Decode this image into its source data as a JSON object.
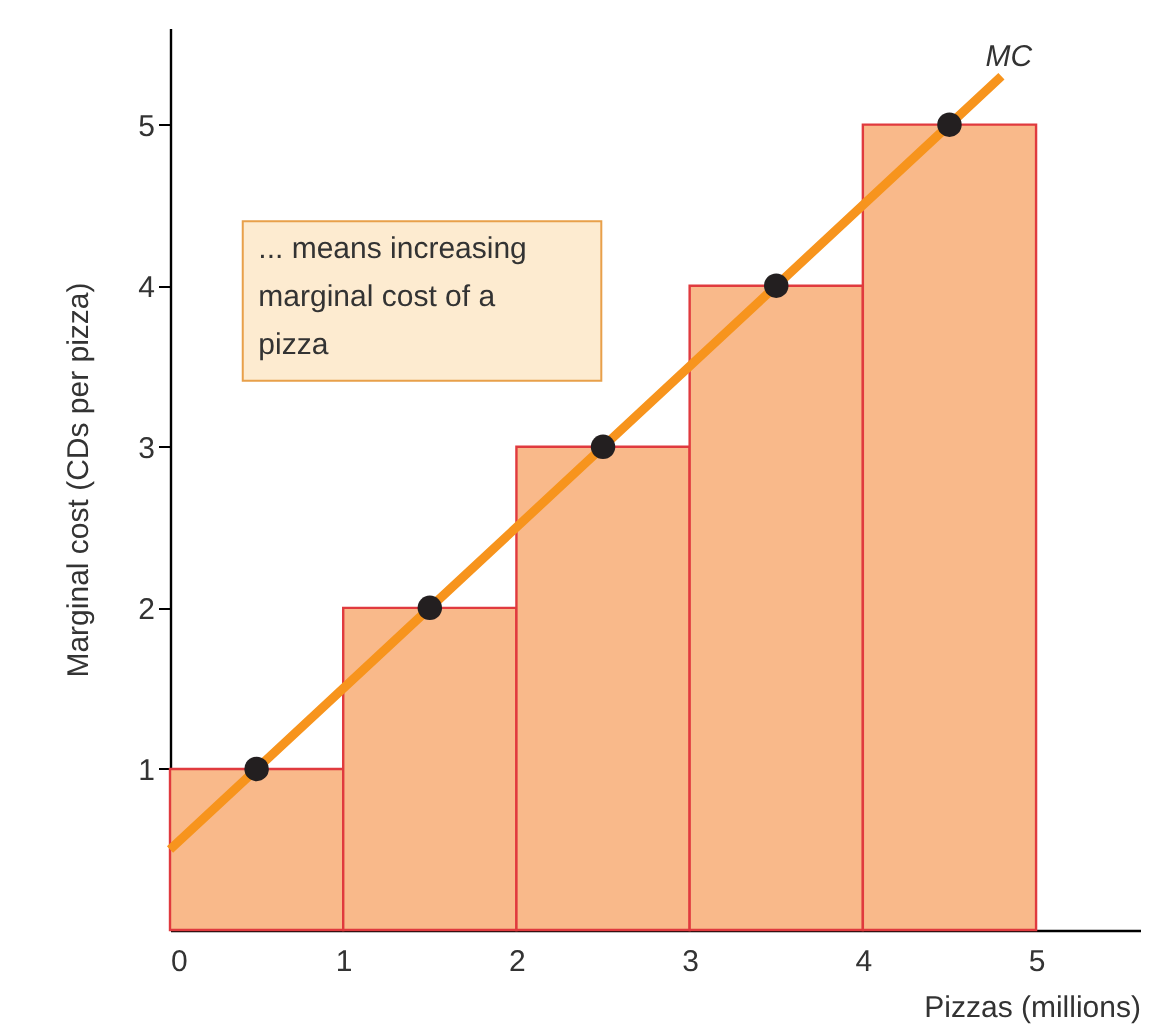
{
  "chart_data": {
    "type": "histogram",
    "xlabel": "Pizzas (millions)",
    "ylabel": "Marginal cost (CDs per pizza)",
    "bins": [
      0,
      1,
      2,
      3,
      4,
      5
    ],
    "series": [
      {
        "color": "#f9b98a",
        "values": [
          1,
          2,
          3,
          4,
          5
        ]
      },
      {
        "type": "line",
        "name": "MC",
        "color": "#f7941d",
        "marker": "none",
        "x": [
          0,
          0.5,
          1.5,
          2.5,
          3.5,
          4.5,
          4.8
        ],
        "values": [
          0.5,
          1,
          2,
          3,
          4,
          5,
          5.3
        ]
      },
      {
        "type": "scatter",
        "color": "#231f20",
        "marker": "circle",
        "x": [
          0.5,
          1.5,
          2.5,
          3.5,
          4.5
        ],
        "values": [
          1,
          2,
          3,
          4,
          5
        ]
      }
    ],
    "annotations": [
      "... means increasing marginal cost of a pizza"
    ],
    "xlim": [
      0,
      5.6
    ],
    "ylim": [
      0,
      5.6
    ],
    "xticks": [
      0,
      1,
      2,
      3,
      4,
      5
    ],
    "yticks": [
      1,
      2,
      3,
      4,
      5
    ],
    "grid": false
  }
}
